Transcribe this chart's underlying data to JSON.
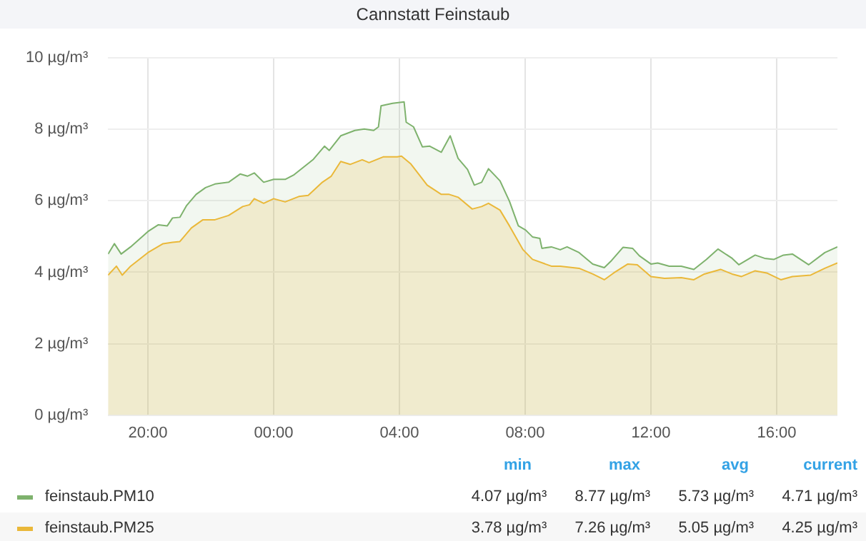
{
  "chart_data": {
    "type": "area",
    "title": "Cannstatt Feinstaub",
    "xlim": [
      "--01-01T18:44",
      "--01-02T17:56"
    ],
    "xticks": [
      {
        "value": "--01-01T20:00",
        "label": "20:00"
      },
      {
        "value": "--01-02T00:00",
        "label": "00:00"
      },
      {
        "value": "--01-02T04:00",
        "label": "04:00"
      },
      {
        "value": "--01-02T08:00",
        "label": "08:00"
      },
      {
        "value": "--01-02T12:00",
        "label": "12:00"
      },
      {
        "value": "--01-02T16:00",
        "label": "16:00"
      }
    ],
    "ylim": [
      0,
      10
    ],
    "yticks": [
      {
        "value": 0,
        "label": "0 µg/m³"
      },
      {
        "value": 2,
        "label": "2 µg/m³"
      },
      {
        "value": 4,
        "label": "4 µg/m³"
      },
      {
        "value": 6,
        "label": "6 µg/m³"
      },
      {
        "value": 8,
        "label": "8 µg/m³"
      },
      {
        "value": 10,
        "label": "10 µg/m³"
      }
    ],
    "grid": true,
    "legend": "bottom",
    "marker": "none",
    "line_style": "solid",
    "series": [
      {
        "name": "feinstaub.PM10",
        "color": "#7eb26d",
        "x": [
          "--01-01T18:44",
          "--01-01T18:56",
          "--01-01T19:09",
          "--01-01T19:27",
          "--01-01T20:00",
          "--01-01T20:20",
          "--01-01T20:37",
          "--01-01T20:47",
          "--01-01T21:01",
          "--01-01T21:14",
          "--01-01T21:32",
          "--01-01T21:50",
          "--01-01T22:08",
          "--01-01T22:34",
          "--01-01T22:56",
          "--01-01T23:10",
          "--01-01T23:23",
          "--01-01T23:41",
          "--01-02T00:00",
          "--01-02T00:22",
          "--01-02T00:39",
          "--01-02T00:57",
          "--01-02T01:15",
          "--01-02T01:37",
          "--01-02T01:46",
          "--01-02T02:08",
          "--01-02T02:35",
          "--01-02T02:53",
          "--01-02T03:11",
          "--01-02T03:20",
          "--01-02T03:25",
          "--01-02T03:47",
          "--01-02T04:09",
          "--01-02T04:13",
          "--01-02T04:27",
          "--01-02T04:44",
          "--01-02T04:58",
          "--01-02T05:20",
          "--01-02T05:37",
          "--01-02T05:52",
          "--01-02T06:10",
          "--01-02T06:23",
          "--01-02T06:37",
          "--01-02T06:50",
          "--01-02T07:12",
          "--01-02T07:30",
          "--01-02T07:47",
          "--01-02T08:01",
          "--01-02T08:14",
          "--01-02T08:28",
          "--01-02T08:32",
          "--01-02T08:50",
          "--01-02T09:07",
          "--01-02T09:20",
          "--01-02T09:43",
          "--01-02T10:09",
          "--01-02T10:31",
          "--01-02T10:45",
          "--01-02T11:07",
          "--01-02T11:25",
          "--01-02T11:38",
          "--01-02T12:00",
          "--01-02T12:13",
          "--01-02T12:35",
          "--01-02T12:58",
          "--01-02T13:22",
          "--01-02T13:46",
          "--01-02T14:08",
          "--01-02T14:35",
          "--01-02T14:48",
          "--01-02T15:19",
          "--01-02T15:37",
          "--01-02T15:55",
          "--01-02T16:13",
          "--01-02T16:30",
          "--01-02T17:01",
          "--01-02T17:32",
          "--01-02T17:56"
        ],
        "values": [
          4.51,
          4.8,
          4.51,
          4.71,
          5.14,
          5.33,
          5.3,
          5.52,
          5.54,
          5.87,
          6.18,
          6.37,
          6.47,
          6.52,
          6.75,
          6.69,
          6.78,
          6.52,
          6.6,
          6.6,
          6.73,
          6.94,
          7.15,
          7.53,
          7.41,
          7.82,
          7.97,
          8.01,
          7.97,
          8.07,
          8.66,
          8.73,
          8.77,
          8.2,
          8.07,
          7.51,
          7.53,
          7.36,
          7.82,
          7.19,
          6.88,
          6.44,
          6.52,
          6.9,
          6.56,
          5.99,
          5.3,
          5.18,
          4.99,
          4.95,
          4.67,
          4.71,
          4.63,
          4.71,
          4.55,
          4.23,
          4.13,
          4.33,
          4.7,
          4.67,
          4.46,
          4.23,
          4.26,
          4.17,
          4.17,
          4.08,
          4.36,
          4.65,
          4.39,
          4.21,
          4.48,
          4.39,
          4.36,
          4.48,
          4.51,
          4.21,
          4.55,
          4.71
        ]
      },
      {
        "name": "feinstaub.PM25",
        "color": "#eab839",
        "x": [
          "--01-01T18:44",
          "--01-01T19:00",
          "--01-01T19:11",
          "--01-01T19:27",
          "--01-01T20:00",
          "--01-01T20:29",
          "--01-01T20:47",
          "--01-01T21:01",
          "--01-01T21:23",
          "--01-01T21:45",
          "--01-01T22:08",
          "--01-01T22:34",
          "--01-01T23:01",
          "--01-01T23:14",
          "--01-01T23:23",
          "--01-01T23:41",
          "--01-02T00:00",
          "--01-02T00:22",
          "--01-02T00:48",
          "--01-02T01:06",
          "--01-02T01:33",
          "--01-02T01:50",
          "--01-02T02:08",
          "--01-02T02:26",
          "--01-02T02:49",
          "--01-02T03:02",
          "--01-02T03:29",
          "--01-02T03:56",
          "--01-02T04:04",
          "--01-02T04:22",
          "--01-02T04:53",
          "--01-02T05:20",
          "--01-02T05:35",
          "--01-02T05:52",
          "--01-02T06:19",
          "--01-02T06:37",
          "--01-02T06:50",
          "--01-02T07:12",
          "--01-02T07:30",
          "--01-02T07:56",
          "--01-02T08:14",
          "--01-02T08:50",
          "--01-02T09:07",
          "--01-02T09:43",
          "--01-02T10:09",
          "--01-02T10:31",
          "--01-02T10:49",
          "--01-02T11:16",
          "--01-02T11:34",
          "--01-02T12:00",
          "--01-02T12:26",
          "--01-02T12:58",
          "--01-02T13:22",
          "--01-02T13:42",
          "--01-02T14:13",
          "--01-02T14:35",
          "--01-02T14:53",
          "--01-02T15:19",
          "--01-02T15:41",
          "--01-02T16:08",
          "--01-02T16:30",
          "--01-02T17:05",
          "--01-02T17:32",
          "--01-02T17:56"
        ],
        "values": [
          3.92,
          4.17,
          3.92,
          4.17,
          4.55,
          4.8,
          4.84,
          4.86,
          5.24,
          5.47,
          5.47,
          5.59,
          5.84,
          5.89,
          6.06,
          5.93,
          6.06,
          5.97,
          6.12,
          6.15,
          6.52,
          6.69,
          7.1,
          7.02,
          7.15,
          7.07,
          7.23,
          7.23,
          7.25,
          7.03,
          6.44,
          6.18,
          6.18,
          6.1,
          5.77,
          5.84,
          5.93,
          5.74,
          5.3,
          4.63,
          4.36,
          4.17,
          4.17,
          4.11,
          3.95,
          3.79,
          3.98,
          4.23,
          4.21,
          3.88,
          3.83,
          3.85,
          3.79,
          3.95,
          4.08,
          3.95,
          3.88,
          4.04,
          3.98,
          3.79,
          3.88,
          3.92,
          4.11,
          4.26
        ]
      }
    ],
    "annotations": [
      "min",
      "max",
      "avg",
      "current",
      "4.07 µg/m³",
      "8.77 µg/m³",
      "5.73 µg/m³",
      "4.71 µg/m³",
      "3.78 µg/m³",
      "7.26 µg/m³",
      "5.05 µg/m³",
      "4.25 µg/m³"
    ]
  }
}
